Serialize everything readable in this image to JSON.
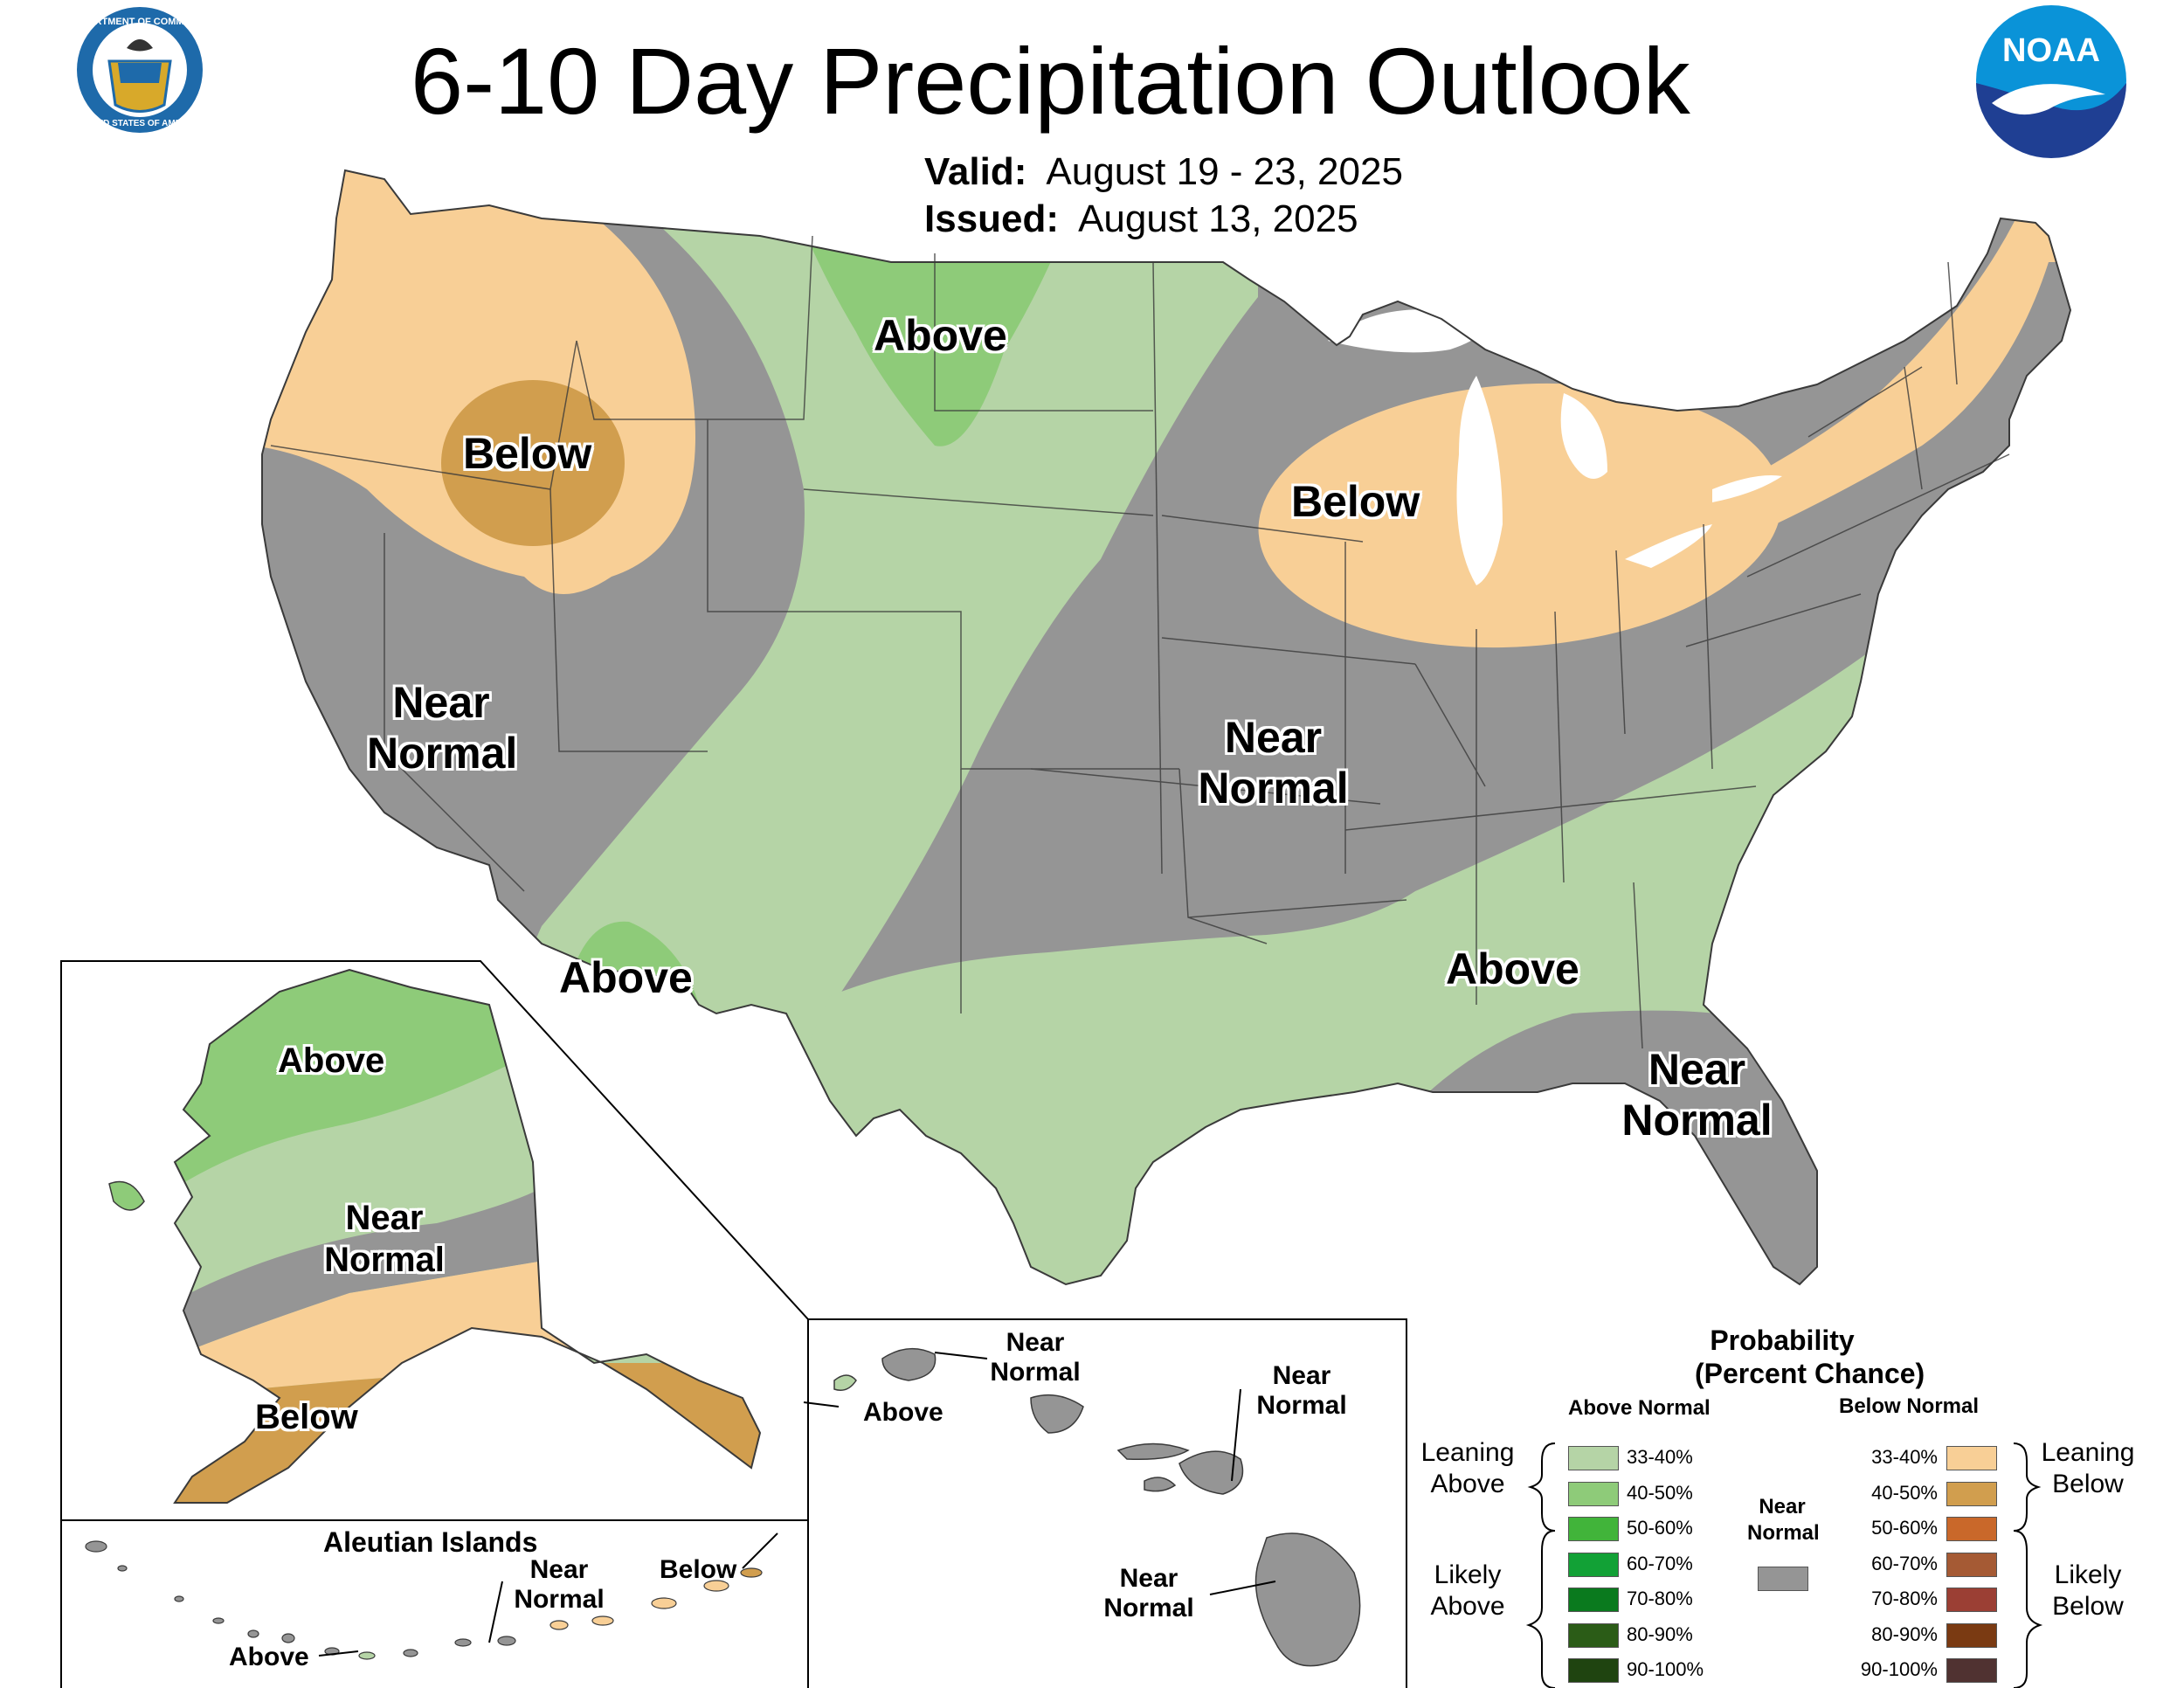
{
  "title": "6-10 Day Precipitation Outlook",
  "valid": {
    "label": "Valid:",
    "value": "August 19 - 23, 2025"
  },
  "issued": {
    "label": "Issued:",
    "value": "August 13, 2025"
  },
  "logos": {
    "commerce_text": "DEPARTMENT OF COMMERCE • UNITED STATES OF AMERICA",
    "noaa_text": "NOAA"
  },
  "colors": {
    "near_normal": "#959595",
    "above_33_40": "#b5d4a6",
    "above_40_50": "#8ecb79",
    "below_33_40": "#f8cf96",
    "below_40_50": "#d19e4e",
    "boundary": "#3a3a3a"
  },
  "labels": {
    "nw_below": "Below",
    "north_above": "Above",
    "west_near_1": "Near",
    "west_near_2": "Normal",
    "sw_above": "Above",
    "central_near_1": "Near",
    "central_near_2": "Normal",
    "gl_below": "Below",
    "se_above": "Above",
    "fl_near_1": "Near",
    "fl_near_2": "Normal",
    "ak_above": "Above",
    "ak_near_1": "Near",
    "ak_near_2": "Normal",
    "ak_below": "Below",
    "aleutian_title": "Aleutian Islands",
    "aleu_near_1": "Near",
    "aleu_near_2": "Normal",
    "aleu_below": "Below",
    "aleu_above": "Above",
    "hi_above": "Above",
    "hi_near_a_1": "Near",
    "hi_near_a_2": "Normal",
    "hi_near_b_1": "Near",
    "hi_near_b_2": "Normal",
    "hi_near_c_1": "Near",
    "hi_near_c_2": "Normal"
  },
  "legend": {
    "title_1": "Probability",
    "title_2": "(Percent Chance)",
    "above_header": "Above Normal",
    "below_header": "Below Normal",
    "near_1": "Near",
    "near_2": "Normal",
    "leaning_above_1": "Leaning",
    "leaning_above_2": "Above",
    "likely_above_1": "Likely",
    "likely_above_2": "Above",
    "leaning_below_1": "Leaning",
    "leaning_below_2": "Below",
    "likely_below_1": "Likely",
    "likely_below_2": "Below",
    "above_items": [
      {
        "range": "33-40%",
        "color": "#b5d4a6"
      },
      {
        "range": "40-50%",
        "color": "#8ecb79"
      },
      {
        "range": "50-60%",
        "color": "#41b43a"
      },
      {
        "range": "60-70%",
        "color": "#12a136"
      },
      {
        "range": "70-80%",
        "color": "#0a7a1e"
      },
      {
        "range": "80-90%",
        "color": "#2b5c17"
      },
      {
        "range": "90-100%",
        "color": "#1f4410"
      }
    ],
    "below_items": [
      {
        "range": "33-40%",
        "color": "#f8cf96"
      },
      {
        "range": "40-50%",
        "color": "#d19e4e"
      },
      {
        "range": "50-60%",
        "color": "#c9682a"
      },
      {
        "range": "60-70%",
        "color": "#a55a34"
      },
      {
        "range": "70-80%",
        "color": "#9b3f34"
      },
      {
        "range": "80-90%",
        "color": "#7a3a12"
      },
      {
        "range": "90-100%",
        "color": "#503231"
      }
    ]
  }
}
